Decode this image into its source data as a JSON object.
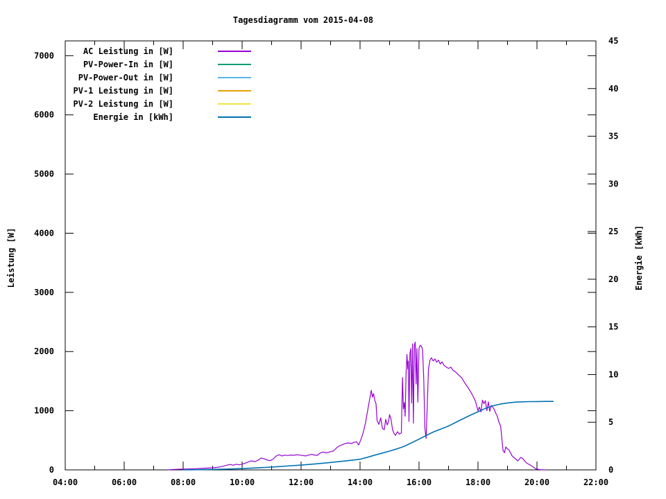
{
  "window": {
    "background": "#ffffff"
  },
  "chart_data": {
    "type": "line",
    "title": "Tagesdiagramm vom 2015-04-08",
    "grid": false,
    "legend_position": "top-left",
    "x_axis": {
      "range_hours": [
        4,
        22
      ],
      "tick_hours": [
        4,
        6,
        8,
        10,
        12,
        14,
        16,
        18,
        20,
        22
      ],
      "tick_labels": [
        "04:00",
        "06:00",
        "08:00",
        "10:00",
        "12:00",
        "14:00",
        "16:00",
        "18:00",
        "20:00",
        "22:00"
      ],
      "minor_tick_hours": [
        5,
        7,
        9,
        11,
        13,
        15,
        17,
        19,
        21
      ]
    },
    "y_left": {
      "label": "Leistung [W]",
      "range": [
        0,
        7250
      ],
      "ticks": [
        0,
        1000,
        2000,
        3000,
        4000,
        5000,
        6000,
        7000
      ]
    },
    "y_right": {
      "label": "Energie [kWh]",
      "range": [
        0,
        45
      ],
      "ticks": [
        0,
        5,
        10,
        15,
        20,
        25,
        30,
        35,
        40,
        45
      ]
    },
    "series": [
      {
        "name": "AC Leistung in [W]",
        "color": "#9400D3",
        "axis": "y_left",
        "stroke_width": 1.2,
        "points": [
          [
            7.5,
            2
          ],
          [
            7.7,
            8
          ],
          [
            7.9,
            12
          ],
          [
            8.1,
            15
          ],
          [
            8.4,
            20
          ],
          [
            8.7,
            28
          ],
          [
            9.0,
            35
          ],
          [
            9.15,
            42
          ],
          [
            9.3,
            55
          ],
          [
            9.45,
            75
          ],
          [
            9.6,
            92
          ],
          [
            9.7,
            78
          ],
          [
            9.8,
            96
          ],
          [
            9.9,
            85
          ],
          [
            10.0,
            96
          ],
          [
            10.15,
            122
          ],
          [
            10.3,
            152
          ],
          [
            10.45,
            140
          ],
          [
            10.55,
            168
          ],
          [
            10.65,
            200
          ],
          [
            10.75,
            186
          ],
          [
            10.85,
            166
          ],
          [
            10.95,
            156
          ],
          [
            11.05,
            182
          ],
          [
            11.15,
            232
          ],
          [
            11.25,
            256
          ],
          [
            11.35,
            236
          ],
          [
            11.45,
            250
          ],
          [
            11.55,
            242
          ],
          [
            11.65,
            252
          ],
          [
            11.75,
            246
          ],
          [
            11.85,
            256
          ],
          [
            11.95,
            250
          ],
          [
            12.05,
            244
          ],
          [
            12.15,
            236
          ],
          [
            12.25,
            250
          ],
          [
            12.35,
            262
          ],
          [
            12.45,
            252
          ],
          [
            12.55,
            246
          ],
          [
            12.65,
            286
          ],
          [
            12.75,
            302
          ],
          [
            12.85,
            286
          ],
          [
            12.95,
            300
          ],
          [
            13.1,
            322
          ],
          [
            13.2,
            370
          ],
          [
            13.3,
            406
          ],
          [
            13.4,
            426
          ],
          [
            13.5,
            446
          ],
          [
            13.6,
            456
          ],
          [
            13.7,
            446
          ],
          [
            13.8,
            466
          ],
          [
            13.88,
            476
          ],
          [
            13.95,
            420
          ],
          [
            14.02,
            500
          ],
          [
            14.1,
            620
          ],
          [
            14.18,
            780
          ],
          [
            14.25,
            980
          ],
          [
            14.32,
            1180
          ],
          [
            14.38,
            1345
          ],
          [
            14.42,
            1230
          ],
          [
            14.46,
            1290
          ],
          [
            14.5,
            1170
          ],
          [
            14.54,
            1120
          ],
          [
            14.58,
            830
          ],
          [
            14.64,
            770
          ],
          [
            14.7,
            880
          ],
          [
            14.76,
            700
          ],
          [
            14.82,
            680
          ],
          [
            14.87,
            855
          ],
          [
            14.92,
            760
          ],
          [
            14.97,
            820
          ],
          [
            15.0,
            935
          ],
          [
            15.05,
            860
          ],
          [
            15.1,
            680
          ],
          [
            15.15,
            620
          ],
          [
            15.2,
            585
          ],
          [
            15.27,
            645
          ],
          [
            15.33,
            605
          ],
          [
            15.4,
            625
          ],
          [
            15.44,
            1560
          ],
          [
            15.47,
            1030
          ],
          [
            15.5,
            1140
          ],
          [
            15.53,
            905
          ],
          [
            15.56,
            1615
          ],
          [
            15.59,
            1950
          ],
          [
            15.62,
            1705
          ],
          [
            15.64,
            1840
          ],
          [
            15.66,
            820
          ],
          [
            15.69,
            1960
          ],
          [
            15.72,
            2050
          ],
          [
            15.75,
            1130
          ],
          [
            15.78,
            2130
          ],
          [
            15.81,
            790
          ],
          [
            15.84,
            2100
          ],
          [
            15.87,
            2160
          ],
          [
            15.9,
            1450
          ],
          [
            15.93,
            2050
          ],
          [
            15.96,
            1145
          ],
          [
            16.0,
            2060
          ],
          [
            16.04,
            2105
          ],
          [
            16.08,
            2090
          ],
          [
            16.12,
            2030
          ],
          [
            16.16,
            1540
          ],
          [
            16.2,
            700
          ],
          [
            16.24,
            530
          ],
          [
            16.28,
            1100
          ],
          [
            16.32,
            1700
          ],
          [
            16.37,
            1850
          ],
          [
            16.42,
            1895
          ],
          [
            16.48,
            1840
          ],
          [
            16.54,
            1875
          ],
          [
            16.6,
            1820
          ],
          [
            16.66,
            1855
          ],
          [
            16.72,
            1790
          ],
          [
            16.78,
            1825
          ],
          [
            16.85,
            1765
          ],
          [
            16.92,
            1740
          ],
          [
            17.0,
            1715
          ],
          [
            17.08,
            1735
          ],
          [
            17.15,
            1685
          ],
          [
            17.25,
            1650
          ],
          [
            17.35,
            1600
          ],
          [
            17.45,
            1555
          ],
          [
            17.55,
            1470
          ],
          [
            17.65,
            1400
          ],
          [
            17.75,
            1320
          ],
          [
            17.85,
            1230
          ],
          [
            17.92,
            1150
          ],
          [
            18.0,
            1000
          ],
          [
            18.05,
            1060
          ],
          [
            18.1,
            980
          ],
          [
            18.15,
            1180
          ],
          [
            18.2,
            1120
          ],
          [
            18.25,
            1170
          ],
          [
            18.3,
            1000
          ],
          [
            18.35,
            1150
          ],
          [
            18.4,
            990
          ],
          [
            18.45,
            1090
          ],
          [
            18.5,
            1060
          ],
          [
            18.55,
            1020
          ],
          [
            18.6,
            960
          ],
          [
            18.65,
            913
          ],
          [
            18.7,
            820
          ],
          [
            18.77,
            738
          ],
          [
            18.8,
            582
          ],
          [
            18.85,
            328
          ],
          [
            18.9,
            289
          ],
          [
            18.94,
            386
          ],
          [
            19.0,
            355
          ],
          [
            19.05,
            340
          ],
          [
            19.1,
            289
          ],
          [
            19.15,
            240
          ],
          [
            19.26,
            191
          ],
          [
            19.35,
            152
          ],
          [
            19.45,
            211
          ],
          [
            19.52,
            191
          ],
          [
            19.6,
            140
          ],
          [
            19.66,
            113
          ],
          [
            19.8,
            74
          ],
          [
            19.9,
            40
          ],
          [
            19.97,
            15
          ],
          [
            20.1,
            5
          ],
          [
            20.3,
            0
          ]
        ]
      },
      {
        "name": "PV-Power-In in [W]",
        "color": "#009E73",
        "axis": "y_left",
        "stroke_width": 1.2,
        "points": []
      },
      {
        "name": "PV-Power-Out in [W]",
        "color": "#56B4E9",
        "axis": "y_left",
        "stroke_width": 1.2,
        "points": []
      },
      {
        "name": "PV-1 Leistung in [W]",
        "color": "#E69F00",
        "axis": "y_left",
        "stroke_width": 1.2,
        "points": []
      },
      {
        "name": "PV-2 Leistung in [W]",
        "color": "#F0E442",
        "axis": "y_left",
        "stroke_width": 1.2,
        "points": []
      },
      {
        "name": "Energie in [kWh]",
        "color": "#0072B2",
        "axis": "y_right",
        "stroke_width": 1.6,
        "points": [
          [
            8.0,
            0.0
          ],
          [
            8.5,
            0.02
          ],
          [
            9.0,
            0.05
          ],
          [
            9.5,
            0.09
          ],
          [
            10.0,
            0.14
          ],
          [
            10.5,
            0.21
          ],
          [
            11.0,
            0.3
          ],
          [
            11.5,
            0.4
          ],
          [
            12.0,
            0.5
          ],
          [
            12.5,
            0.63
          ],
          [
            13.0,
            0.78
          ],
          [
            13.5,
            0.94
          ],
          [
            14.0,
            1.12
          ],
          [
            14.25,
            1.32
          ],
          [
            14.5,
            1.55
          ],
          [
            14.75,
            1.76
          ],
          [
            15.0,
            1.97
          ],
          [
            15.25,
            2.2
          ],
          [
            15.5,
            2.48
          ],
          [
            15.75,
            2.84
          ],
          [
            16.0,
            3.23
          ],
          [
            16.25,
            3.62
          ],
          [
            16.5,
            4.0
          ],
          [
            16.75,
            4.3
          ],
          [
            17.0,
            4.6
          ],
          [
            17.25,
            4.99
          ],
          [
            17.5,
            5.38
          ],
          [
            17.75,
            5.75
          ],
          [
            18.0,
            6.1
          ],
          [
            18.25,
            6.45
          ],
          [
            18.5,
            6.72
          ],
          [
            18.75,
            6.9
          ],
          [
            19.0,
            7.02
          ],
          [
            19.25,
            7.1
          ],
          [
            19.5,
            7.14
          ],
          [
            19.75,
            7.16
          ],
          [
            20.0,
            7.17
          ],
          [
            20.3,
            7.18
          ],
          [
            20.55,
            7.18
          ]
        ]
      }
    ]
  }
}
